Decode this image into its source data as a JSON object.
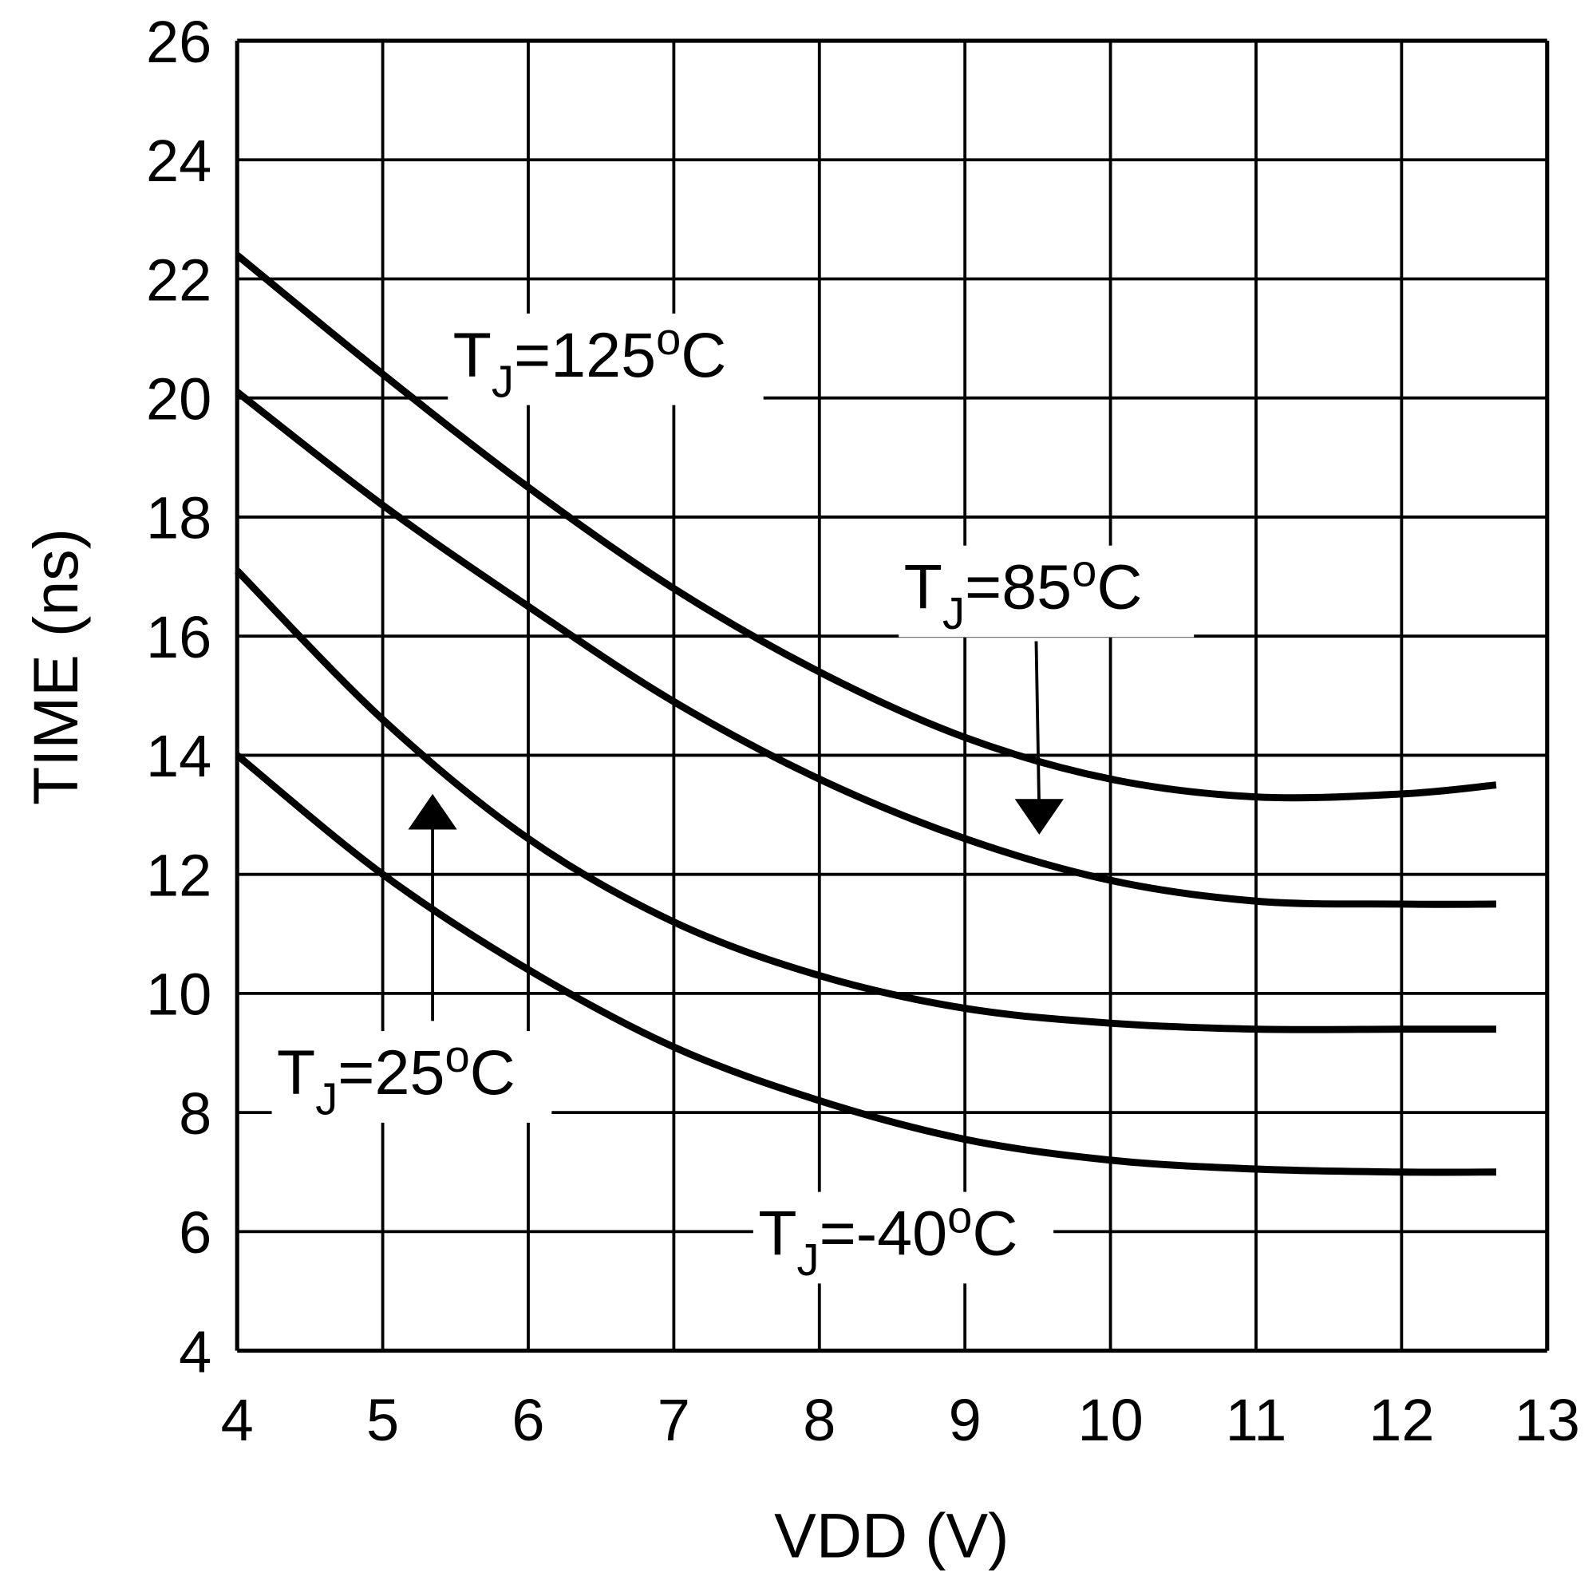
{
  "chart_data": {
    "type": "line",
    "title": "",
    "xlabel": "VDD (V)",
    "ylabel": "TIME (ns)",
    "xlim": [
      4,
      13
    ],
    "ylim": [
      4,
      26
    ],
    "xticks": [
      "4",
      "5",
      "6",
      "7",
      "8",
      "9",
      "10",
      "11",
      "12",
      "13"
    ],
    "yticks": [
      "4",
      "6",
      "8",
      "10",
      "12",
      "14",
      "16",
      "18",
      "20",
      "22",
      "24",
      "26"
    ],
    "grid": true,
    "line_color": "#000000",
    "x": [
      4,
      5,
      6,
      7,
      8,
      9,
      10,
      11,
      12,
      12.65
    ],
    "series": [
      {
        "name": "TJ=125oC",
        "label_main": "T",
        "label_sub": "J",
        "label_rest1": "=125",
        "label_sup": "o",
        "label_rest2": "C",
        "values": [
          22.4,
          20.4,
          18.5,
          16.8,
          15.4,
          14.3,
          13.6,
          13.3,
          13.35,
          13.5
        ]
      },
      {
        "name": "TJ=85oC",
        "label_main": "T",
        "label_sub": "J",
        "label_rest1": "=85",
        "label_sup": "o",
        "label_rest2": "C",
        "values": [
          20.1,
          18.2,
          16.5,
          14.9,
          13.6,
          12.6,
          11.9,
          11.55,
          11.5,
          11.5
        ]
      },
      {
        "name": "TJ=25oC",
        "label_main": "T",
        "label_sub": "J",
        "label_rest1": "=25",
        "label_sup": "o",
        "label_rest2": "C",
        "values": [
          17.1,
          14.6,
          12.6,
          11.2,
          10.3,
          9.75,
          9.5,
          9.4,
          9.4,
          9.4
        ]
      },
      {
        "name": "TJ=-40oC",
        "label_main": "T",
        "label_sub": "J",
        "label_rest1": "=-40",
        "label_sup": "o",
        "label_rest2": "C",
        "values": [
          14.0,
          12.0,
          10.4,
          9.1,
          8.2,
          7.55,
          7.2,
          7.05,
          7.0,
          7.0
        ]
      }
    ]
  }
}
